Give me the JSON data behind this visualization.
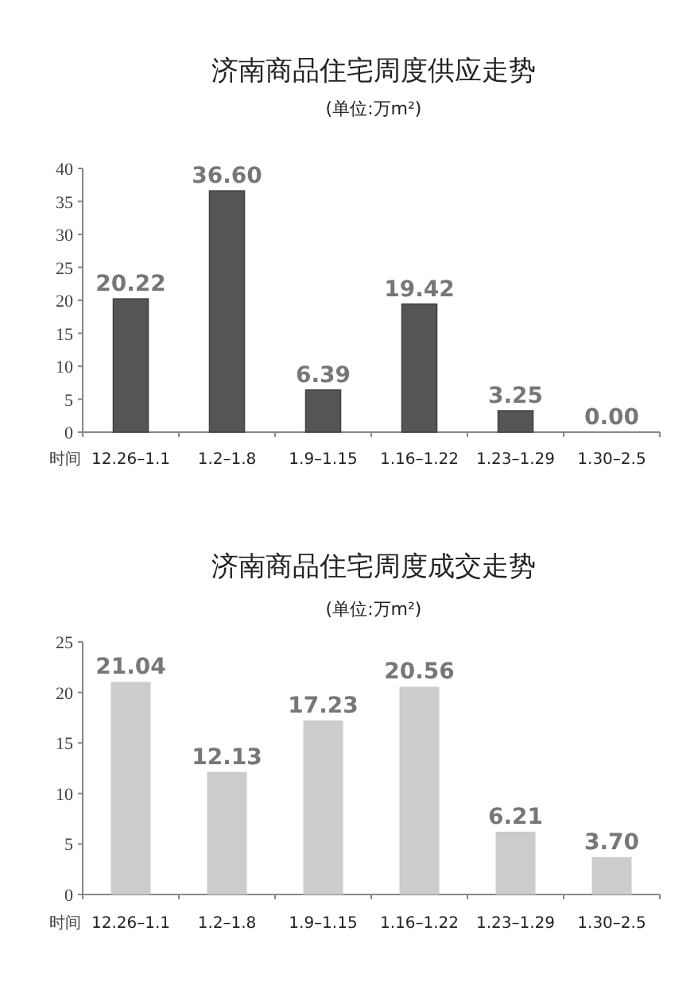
{
  "chart_data": [
    {
      "type": "bar",
      "title": "济南商品住宅周度供应走势",
      "subtitle": "(单位:万m²)",
      "xlabel": "时间",
      "categories": [
        "12.26–1.1",
        "1.2–1.8",
        "1.9–1.15",
        "1.16–1.22",
        "1.23–1.29",
        "1.30–2.5"
      ],
      "values": [
        20.22,
        36.6,
        6.39,
        19.42,
        3.25,
        0
      ],
      "value_labels": [
        "20.22",
        "36.60",
        "6.39",
        "19.42",
        "3.25",
        "0.00"
      ],
      "color": "#555555",
      "ylim": [
        0,
        40
      ],
      "yticks": [
        0,
        5,
        10,
        15,
        20,
        25,
        30,
        35,
        40
      ]
    },
    {
      "type": "bar",
      "title": "济南商品住宅周度成交走势",
      "subtitle": "(单位:万m²)",
      "xlabel": "时间",
      "categories": [
        "12.26–1.1",
        "1.2–1.8",
        "1.9–1.15",
        "1.16–1.22",
        "1.23–1.29",
        "1.30–2.5"
      ],
      "values": [
        21.04,
        12.13,
        17.23,
        20.56,
        6.21,
        3.7
      ],
      "value_labels": [
        "21.04",
        "12.13",
        "17.23",
        "20.56",
        "6.21",
        "3.70"
      ],
      "color": "#cccccc",
      "ylim": [
        0,
        25
      ],
      "yticks": [
        0,
        5,
        10,
        15,
        20,
        25
      ]
    }
  ]
}
